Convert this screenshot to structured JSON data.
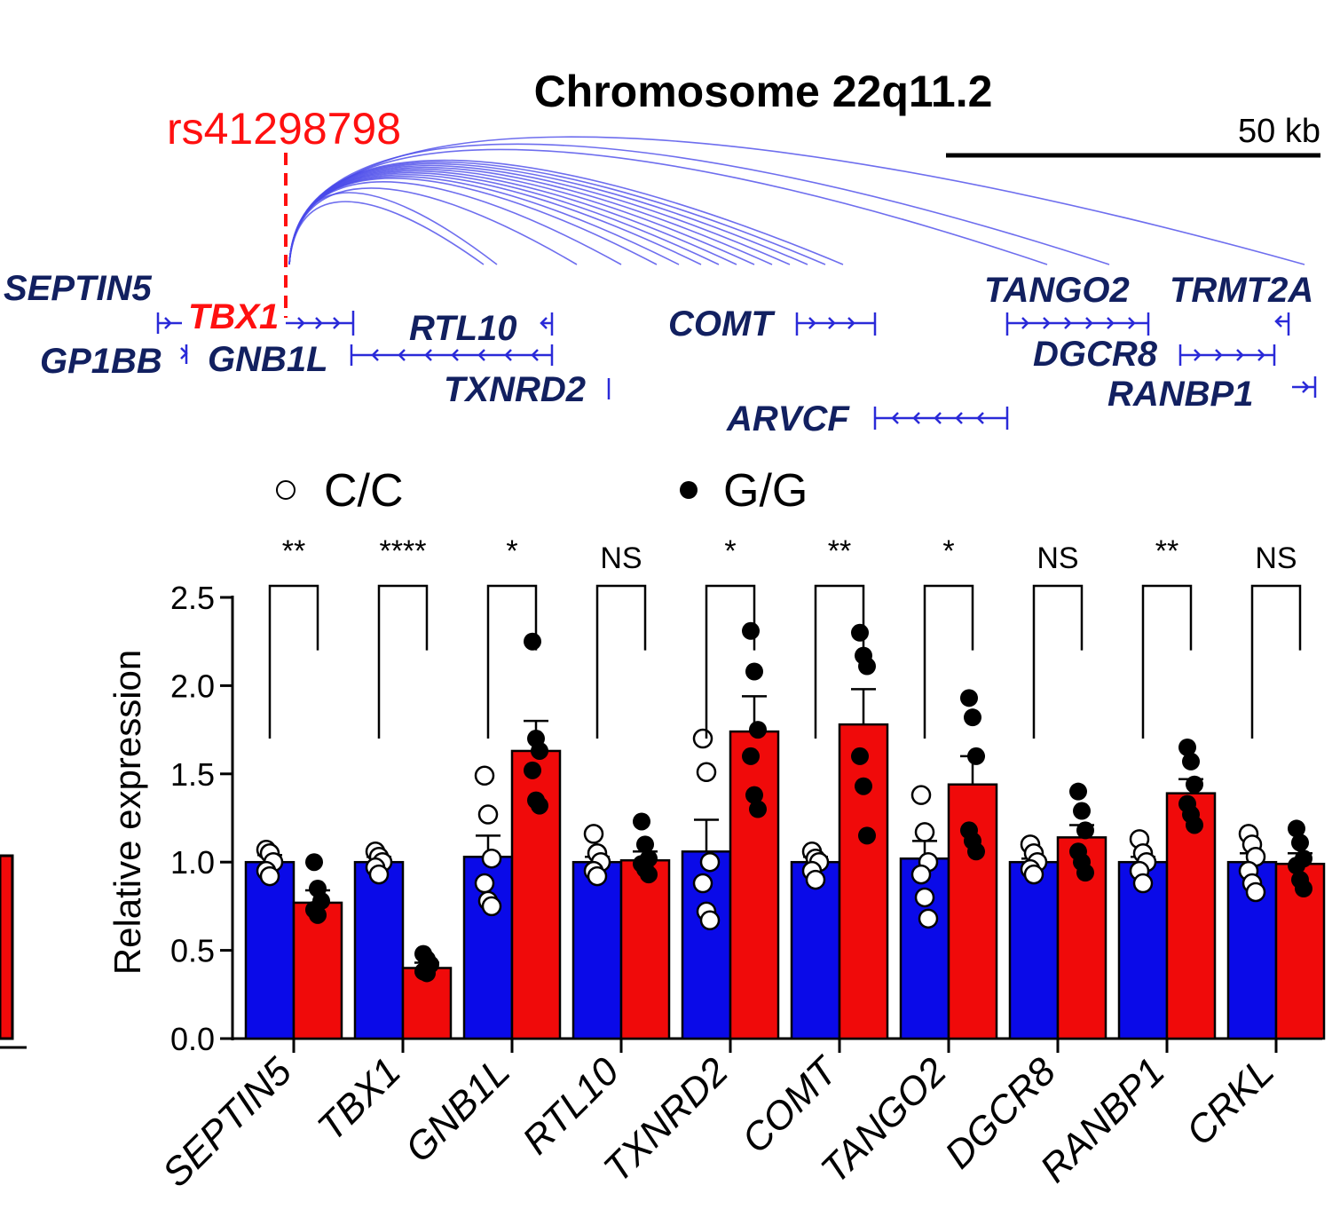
{
  "header": {
    "title": "Chromosome 22q11.2",
    "snp_label": "rs41298798",
    "scale_label": "50 kb"
  },
  "genes_track": [
    {
      "name": "SEPTIN5",
      "highlight": false
    },
    {
      "name": "TBX1",
      "highlight": true
    },
    {
      "name": "GP1BB",
      "highlight": false
    },
    {
      "name": "GNB1L",
      "highlight": false
    },
    {
      "name": "RTL10",
      "highlight": false
    },
    {
      "name": "TXNRD2",
      "highlight": false
    },
    {
      "name": "COMT",
      "highlight": false
    },
    {
      "name": "ARVCF",
      "highlight": false
    },
    {
      "name": "TANGO2",
      "highlight": false
    },
    {
      "name": "TRMT2A",
      "highlight": false
    },
    {
      "name": "DGCR8",
      "highlight": false
    },
    {
      "name": "RANBP1",
      "highlight": false
    }
  ],
  "legend": {
    "cc_label": "C/C",
    "gg_label": "G/G"
  },
  "colors": {
    "cc_bar": "#0a0ae8",
    "gg_bar": "#f00a0a",
    "snp": "#ff1010",
    "gene_text": "#122060",
    "arc": "#4a4aea"
  },
  "chart_data": {
    "type": "bar",
    "title": "",
    "xlabel": "",
    "ylabel": "Relative expression",
    "ylim": [
      0,
      2.5
    ],
    "yticks": [
      "0.0",
      "0.5",
      "1.0",
      "1.5",
      "2.0",
      "2.5"
    ],
    "categories": [
      "SEPTIN5",
      "TBX1",
      "GNB1L",
      "RTL10",
      "TXNRD2",
      "COMT",
      "TANGO2",
      "DGCR8",
      "RANBP1",
      "CRKL"
    ],
    "series": [
      {
        "name": "C/C",
        "values": [
          1.0,
          1.0,
          1.03,
          1.0,
          1.06,
          1.0,
          1.02,
          1.0,
          1.0,
          1.0
        ],
        "sem": [
          0.04,
          0.03,
          0.12,
          0.03,
          0.18,
          0.03,
          0.1,
          0.02,
          0.03,
          0.05
        ],
        "points": [
          [
            1.07,
            1.05,
            1.0,
            0.95,
            0.92
          ],
          [
            1.06,
            1.03,
            1.0,
            0.97,
            0.93
          ],
          [
            1.49,
            1.27,
            1.02,
            0.88,
            0.78,
            0.75
          ],
          [
            1.16,
            1.05,
            1.0,
            0.95,
            0.92
          ],
          [
            1.7,
            1.51,
            1.0,
            0.88,
            0.72,
            0.67
          ],
          [
            1.06,
            1.02,
            1.0,
            0.95,
            0.9
          ],
          [
            1.38,
            1.17,
            1.0,
            0.93,
            0.8,
            0.68
          ],
          [
            1.1,
            1.05,
            1.0,
            0.96,
            0.93
          ],
          [
            1.13,
            1.05,
            1.0,
            0.95,
            0.88
          ],
          [
            1.16,
            1.1,
            1.03,
            0.95,
            0.88,
            0.83
          ]
        ]
      },
      {
        "name": "G/G",
        "values": [
          0.77,
          0.4,
          1.63,
          1.01,
          1.74,
          1.78,
          1.44,
          1.14,
          1.39,
          0.99
        ],
        "sem": [
          0.07,
          0.03,
          0.17,
          0.05,
          0.2,
          0.2,
          0.16,
          0.07,
          0.08,
          0.06
        ],
        "points": [
          [
            1.0,
            0.85,
            0.78,
            0.73,
            0.7
          ],
          [
            0.48,
            0.45,
            0.42,
            0.38,
            0.37
          ],
          [
            2.25,
            1.7,
            1.63,
            1.52,
            1.35,
            1.32
          ],
          [
            1.23,
            1.1,
            1.02,
            0.99,
            0.96,
            0.93
          ],
          [
            2.31,
            2.08,
            1.75,
            1.6,
            1.38,
            1.3
          ],
          [
            2.3,
            2.17,
            2.11,
            1.6,
            1.43,
            1.15
          ],
          [
            1.93,
            1.82,
            1.6,
            1.18,
            1.12,
            1.06
          ],
          [
            1.4,
            1.29,
            1.18,
            1.06,
            1.0,
            0.94
          ],
          [
            1.65,
            1.57,
            1.44,
            1.33,
            1.27,
            1.21
          ],
          [
            1.19,
            1.11,
            1.02,
            0.98,
            0.9,
            0.85
          ]
        ]
      }
    ],
    "significance": [
      "**",
      "****",
      "*",
      "NS",
      "*",
      "**",
      "*",
      "NS",
      "**",
      "NS"
    ]
  }
}
